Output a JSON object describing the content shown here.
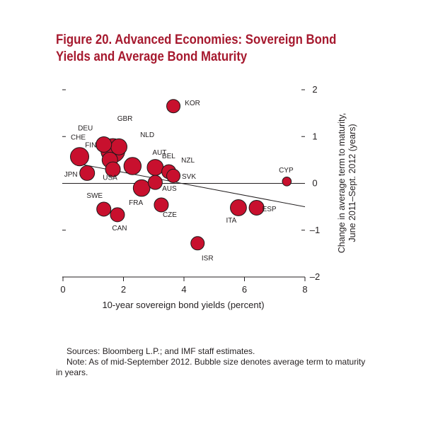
{
  "figure": {
    "title_line1": "Figure 20. Advanced Economies: Sovereign Bond",
    "title_line2": "Yields and Average Bond Maturity",
    "title_color": "#a6192e"
  },
  "chart_data": {
    "type": "scatter",
    "subtype": "bubble",
    "xlabel": "10-year sovereign bond yields (percent)",
    "ylabel_line1": "Change in average term to maturity,",
    "ylabel_line2": "June 2011–Sept. 2012 (years)",
    "xlim": [
      0,
      8
    ],
    "ylim": [
      -2,
      2
    ],
    "x_ticks": [
      0,
      2,
      4,
      6,
      8
    ],
    "x_tick_labels": [
      "0",
      "2",
      "4",
      "6",
      "8"
    ],
    "y_ticks": [
      -2,
      -1,
      0,
      1,
      2
    ],
    "y_tick_labels": [
      "–2",
      "–1",
      "0",
      "1",
      "2"
    ],
    "grid": false,
    "legend": "none",
    "bubble_color": "#c8102e",
    "bubble_size_meaning": "average term to maturity (years)",
    "points": [
      {
        "label": "KOR",
        "x": 3.65,
        "y": 1.65,
        "size": 4.5
      },
      {
        "label": "GBR",
        "x": 1.65,
        "y": 0.7,
        "size": 14.5
      },
      {
        "label": "NLD",
        "x": 1.85,
        "y": 0.78,
        "size": 6.5
      },
      {
        "label": "DEU",
        "x": 1.35,
        "y": 0.83,
        "size": 6.0
      },
      {
        "label": "CHE",
        "x": 0.55,
        "y": 0.57,
        "size": 8.5
      },
      {
        "label": "FIN",
        "x": 1.55,
        "y": 0.5,
        "size": 6.0
      },
      {
        "label": "AUT",
        "x": 2.3,
        "y": 0.37,
        "size": 7.5
      },
      {
        "label": "JPN",
        "x": 0.8,
        "y": 0.22,
        "size": 5.5
      },
      {
        "label": "USA",
        "x": 1.65,
        "y": 0.3,
        "size": 5.5
      },
      {
        "label": "BEL",
        "x": 3.05,
        "y": 0.34,
        "size": 6.5
      },
      {
        "label": "NZL",
        "x": 3.5,
        "y": 0.25,
        "size": 5.0
      },
      {
        "label": "SVK",
        "x": 3.65,
        "y": 0.16,
        "size": 4.5
      },
      {
        "label": "CYP",
        "x": 7.4,
        "y": 0.04,
        "size": 2.0
      },
      {
        "label": "AUS",
        "x": 3.05,
        "y": 0.02,
        "size": 5.0
      },
      {
        "label": "FRA",
        "x": 2.6,
        "y": -0.1,
        "size": 7.0
      },
      {
        "label": "SWE",
        "x": 1.35,
        "y": -0.55,
        "size": 5.0
      },
      {
        "label": "CAN",
        "x": 1.8,
        "y": -0.67,
        "size": 5.0
      },
      {
        "label": "CZE",
        "x": 3.25,
        "y": -0.46,
        "size": 5.0
      },
      {
        "label": "ITA",
        "x": 5.8,
        "y": -0.52,
        "size": 6.5
      },
      {
        "label": "ESP",
        "x": 6.4,
        "y": -0.52,
        "size": 5.5
      },
      {
        "label": "ISR",
        "x": 4.45,
        "y": -1.28,
        "size": 4.5
      }
    ],
    "trendline": {
      "x": [
        0.5,
        8.0
      ],
      "y": [
        0.42,
        -0.5
      ]
    }
  },
  "notes": {
    "sources": "Sources: Bloomberg L.P.; and IMF staff estimates.",
    "note": "Note: As of mid-September 2012. Bubble size denotes average term to maturity in years."
  }
}
